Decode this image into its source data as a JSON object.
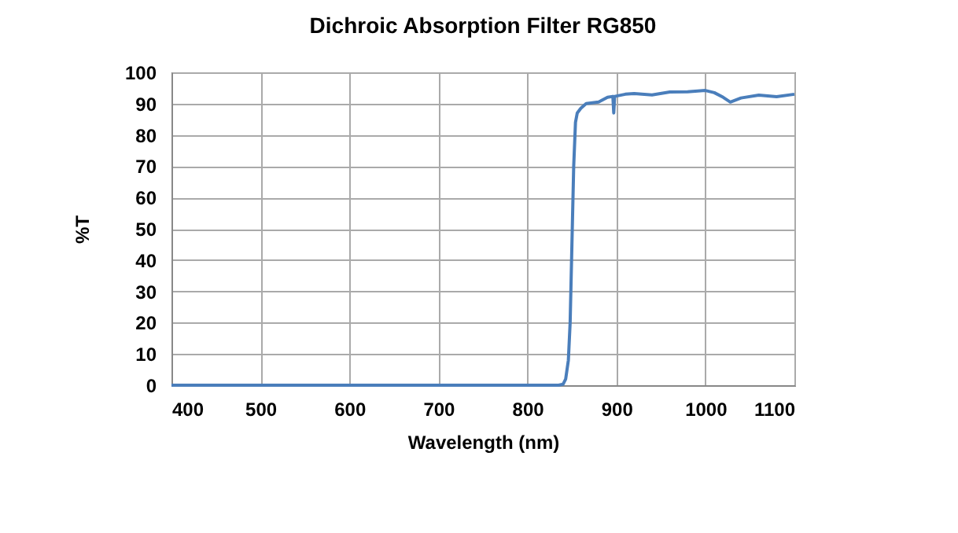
{
  "chart_data": {
    "type": "line",
    "title": "Dichroic Absorption Filter RG850",
    "xlabel": "Wavelength (nm)",
    "ylabel": "%T",
    "x": [
      400,
      500,
      600,
      700,
      800,
      835,
      840,
      843,
      846,
      848,
      850,
      852,
      854,
      856,
      860,
      866,
      880,
      890,
      896,
      897,
      898,
      910,
      920,
      940,
      960,
      980,
      1000,
      1010,
      1020,
      1028,
      1040,
      1060,
      1080,
      1100
    ],
    "series": [
      {
        "color": "#4a7ebb",
        "values": [
          0,
          0,
          0,
          0,
          0,
          0,
          0.3,
          2,
          8,
          20,
          45,
          70,
          84,
          87,
          88.5,
          90,
          90.5,
          92,
          92.3,
          87,
          92.3,
          93,
          93.2,
          92.8,
          93.7,
          93.8,
          94.2,
          93.5,
          92,
          90.5,
          91.8,
          92.7,
          92.2,
          93
        ]
      }
    ],
    "xlim": [
      400,
      1100
    ],
    "xticks": [
      400,
      500,
      600,
      700,
      800,
      900,
      1000,
      1100
    ],
    "ylim": [
      0,
      100
    ],
    "yticks": [
      0,
      10,
      20,
      30,
      40,
      50,
      60,
      70,
      80,
      90,
      100
    ],
    "grid": true,
    "legend": false,
    "marker": "none",
    "line_style": "solid"
  }
}
